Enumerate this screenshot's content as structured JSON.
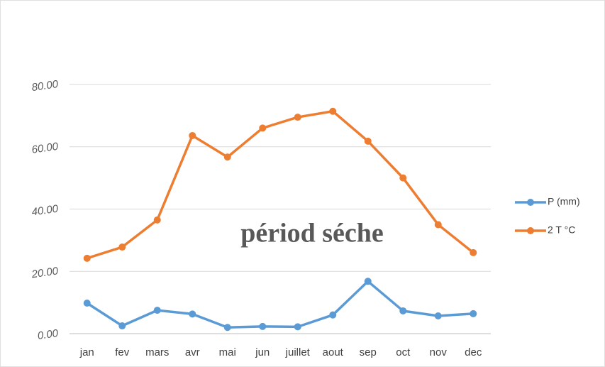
{
  "chart_data": {
    "type": "line",
    "categories": [
      "jan",
      "fev",
      "mars",
      "avr",
      "mai",
      "jun",
      "juillet",
      "aout",
      "sep",
      "oct",
      "nov",
      "dec"
    ],
    "series": [
      {
        "name": "P (mm)",
        "color": "#5b9bd5",
        "values": [
          9.8,
          2.5,
          7.5,
          6.3,
          2.0,
          2.3,
          2.2,
          6.0,
          16.8,
          7.3,
          5.7,
          6.4
        ]
      },
      {
        "name": "2 T °C",
        "color": "#ed7d31",
        "values": [
          24.2,
          27.8,
          36.5,
          63.6,
          56.7,
          66.0,
          69.5,
          71.4,
          61.8,
          50.0,
          35.0,
          26.0
        ]
      }
    ],
    "ylim": [
      0,
      80
    ],
    "yticks": [
      {
        "value": 0,
        "label": "0.00"
      },
      {
        "value": 20,
        "label": "20.00"
      },
      {
        "value": 40,
        "label": "40.00"
      },
      {
        "value": 60,
        "label": "60.00"
      },
      {
        "value": 80,
        "label": "80.00"
      }
    ],
    "grid": true,
    "legend": "right",
    "annotations": [
      "périod séche"
    ]
  }
}
